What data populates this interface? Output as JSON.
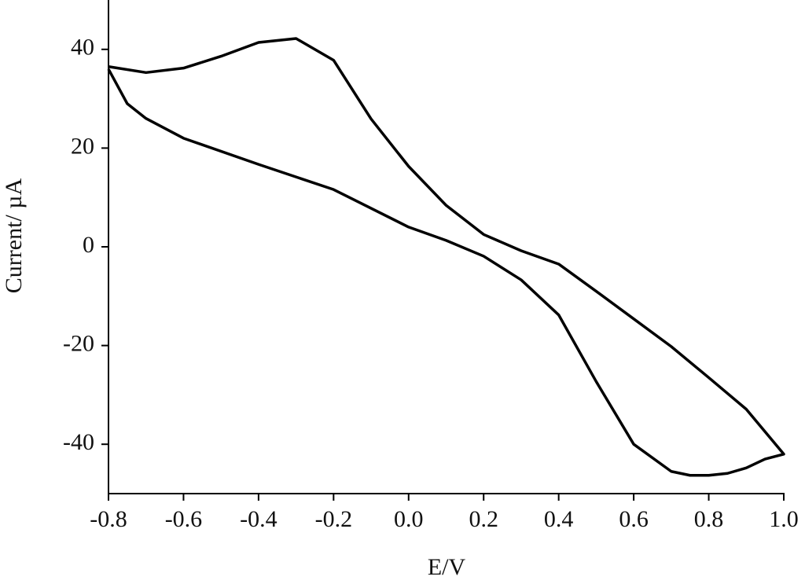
{
  "chart_data": {
    "type": "line",
    "x_label": "E/V",
    "y_label": "Current/ µA",
    "xlim": [
      -0.8,
      1.0
    ],
    "xticks": [
      -0.8,
      -0.6,
      -0.4,
      -0.2,
      {
        "value": 0,
        "label": "0.0"
      },
      0.2,
      0.4,
      0.6,
      0.8,
      {
        "value": 1,
        "label": "1.0"
      }
    ],
    "ylim": [
      -50,
      50
    ],
    "yticks": [
      -40,
      -20,
      0,
      20,
      40
    ],
    "grid": false,
    "series": [
      {
        "color": "#000000",
        "x": [
          -0.8,
          -0.7,
          -0.6,
          -0.5,
          -0.4,
          -0.3,
          -0.2,
          -0.1,
          0.0,
          0.1,
          0.2,
          0.3,
          0.4,
          0.5,
          0.6,
          0.7,
          0.8,
          0.9,
          1.0,
          0.95,
          0.9,
          0.85,
          0.8,
          0.75,
          0.7,
          0.6,
          0.5,
          0.4,
          0.3,
          0.2,
          0.1,
          0.0,
          -0.2,
          -0.4,
          -0.6,
          -0.7,
          -0.75,
          -0.8
        ],
        "values": [
          36.5,
          35.3,
          36.2,
          38.6,
          41.4,
          42.2,
          37.8,
          25.9,
          16.3,
          8.4,
          2.5,
          -0.8,
          -3.5,
          -9,
          -14.6,
          -20.2,
          -26.5,
          -32.9,
          -42,
          -43,
          -44.8,
          -45.9,
          -46.3,
          -46.3,
          -45.5,
          -40,
          -27.3,
          -13.8,
          -6.7,
          -1.9,
          1.3,
          4,
          11.6,
          16.7,
          22,
          26,
          29,
          36
        ]
      }
    ]
  }
}
